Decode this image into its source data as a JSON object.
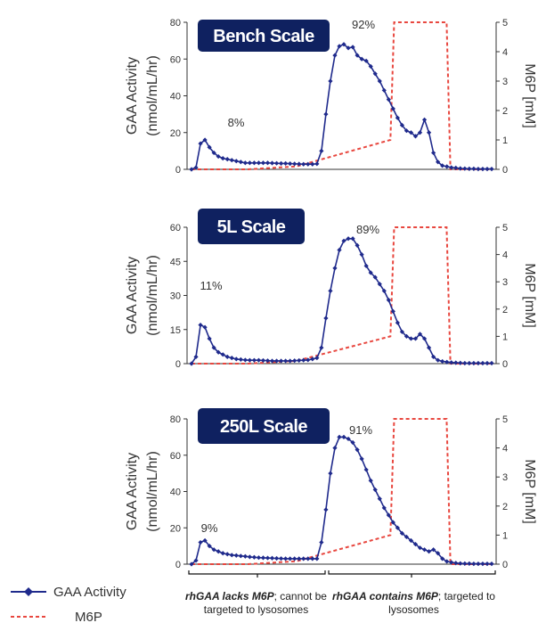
{
  "chart_data": [
    {
      "type": "line",
      "title": "Bench Scale",
      "ylabel": "GAA Activity (nmol/mL/hr)",
      "y2label": "M6P [mM]",
      "ylim": [
        0,
        80
      ],
      "yticks": [
        0,
        20,
        40,
        60,
        80
      ],
      "y2lim": [
        0,
        5
      ],
      "y2ticks": [
        0,
        1,
        2,
        3,
        4,
        5
      ],
      "annotations": [
        "8%",
        "92%"
      ],
      "series": [
        {
          "name": "GAA Activity",
          "color": "#1f2a8c",
          "values": [
            0,
            1,
            14,
            16,
            12,
            9,
            7,
            6,
            5.5,
            5,
            4.5,
            4,
            3.5,
            3.5,
            3.5,
            3.5,
            3.5,
            3.5,
            3.4,
            3.3,
            3.2,
            3.2,
            3.1,
            3,
            2.9,
            2.8,
            2.8,
            2.8,
            3,
            10,
            30,
            48,
            62,
            67,
            68,
            66,
            66.5,
            62,
            60,
            59,
            56,
            52,
            48,
            43,
            38,
            33,
            28,
            24,
            21,
            20,
            18,
            20,
            27,
            20,
            9,
            4,
            2,
            1.5,
            1,
            0.8,
            0.5,
            0.4,
            0.3,
            0.3,
            0.2,
            0.2,
            0.2,
            0.2
          ]
        },
        {
          "name": "M6P",
          "color": "#e8473f",
          "x": [
            0,
            15,
            28,
            53,
            54,
            68,
            69,
            80
          ],
          "values": [
            0,
            0,
            0.1,
            1,
            5,
            5,
            0,
            0
          ]
        }
      ]
    },
    {
      "type": "line",
      "title": "5L Scale",
      "ylabel": "GAA Activity (nmol/mL/hr)",
      "y2label": "M6P [mM]",
      "ylim": [
        0,
        60
      ],
      "yticks": [
        0,
        15,
        30,
        45,
        60
      ],
      "y2lim": [
        0,
        5
      ],
      "y2ticks": [
        0,
        1,
        2,
        3,
        4,
        5
      ],
      "annotations": [
        "11%",
        "89%"
      ],
      "series": [
        {
          "name": "GAA Activity",
          "color": "#1f2a8c",
          "values": [
            0,
            3,
            17,
            16,
            11,
            7,
            5,
            4,
            3,
            2.5,
            2,
            1.8,
            1.6,
            1.5,
            1.5,
            1.5,
            1.4,
            1.3,
            1.2,
            1.2,
            1.2,
            1.2,
            1.2,
            1.3,
            1.4,
            1.5,
            1.6,
            2,
            2.5,
            7,
            20,
            32,
            42,
            50,
            54,
            55,
            55,
            52,
            48,
            43,
            40,
            38,
            35,
            32,
            28,
            23,
            18,
            14,
            12,
            11,
            11,
            13,
            11,
            7,
            3,
            1.5,
            1,
            0.7,
            0.5,
            0.4,
            0.3,
            0.2,
            0.2,
            0.2,
            0.2,
            0.2,
            0.2,
            0.2
          ]
        },
        {
          "name": "M6P",
          "color": "#e8473f",
          "x": [
            0,
            15,
            28,
            53,
            54,
            68,
            69,
            80
          ],
          "values": [
            0,
            0,
            0.1,
            1,
            5,
            5,
            0,
            0
          ]
        }
      ]
    },
    {
      "type": "line",
      "title": "250L Scale",
      "ylabel": "GAA Activity (nmol/mL/hr)",
      "y2label": "M6P [mM]",
      "ylim": [
        0,
        80
      ],
      "yticks": [
        0,
        20,
        40,
        60,
        80
      ],
      "y2lim": [
        0,
        5
      ],
      "y2ticks": [
        0,
        1,
        2,
        3,
        4,
        5
      ],
      "annotations": [
        "9%",
        "91%"
      ],
      "series": [
        {
          "name": "GAA Activity",
          "color": "#1f2a8c",
          "values": [
            0,
            2,
            12,
            13,
            10,
            8,
            7,
            6,
            5.5,
            5,
            4.8,
            4.5,
            4.3,
            4,
            3.8,
            3.6,
            3.5,
            3.4,
            3.3,
            3.2,
            3.1,
            3,
            3,
            3,
            3,
            3,
            3,
            3,
            3,
            12,
            30,
            50,
            64,
            70,
            70,
            69,
            67,
            63,
            58,
            52,
            46,
            41,
            36,
            31,
            27,
            23,
            20,
            17,
            15,
            13,
            11,
            9,
            8,
            7,
            8,
            6,
            3,
            1.5,
            1,
            0.6,
            0.4,
            0.3,
            0.3,
            0.2,
            0.2,
            0.2,
            0.2,
            0.2
          ]
        },
        {
          "name": "M6P",
          "color": "#e8473f",
          "x": [
            0,
            15,
            28,
            53,
            54,
            68,
            69,
            80
          ],
          "values": [
            0,
            0,
            0.1,
            1,
            5,
            5,
            0,
            0
          ]
        }
      ]
    }
  ],
  "legend": {
    "gaa_label": "GAA Activity",
    "m6p_label": "M6P"
  },
  "regions": {
    "left_bold": "rhGAA lacks M6P",
    "left_rest": "; cannot be targeted to lysosomes",
    "right_bold": "rhGAA contains M6P",
    "right_rest": "; targeted to lysosomes"
  }
}
